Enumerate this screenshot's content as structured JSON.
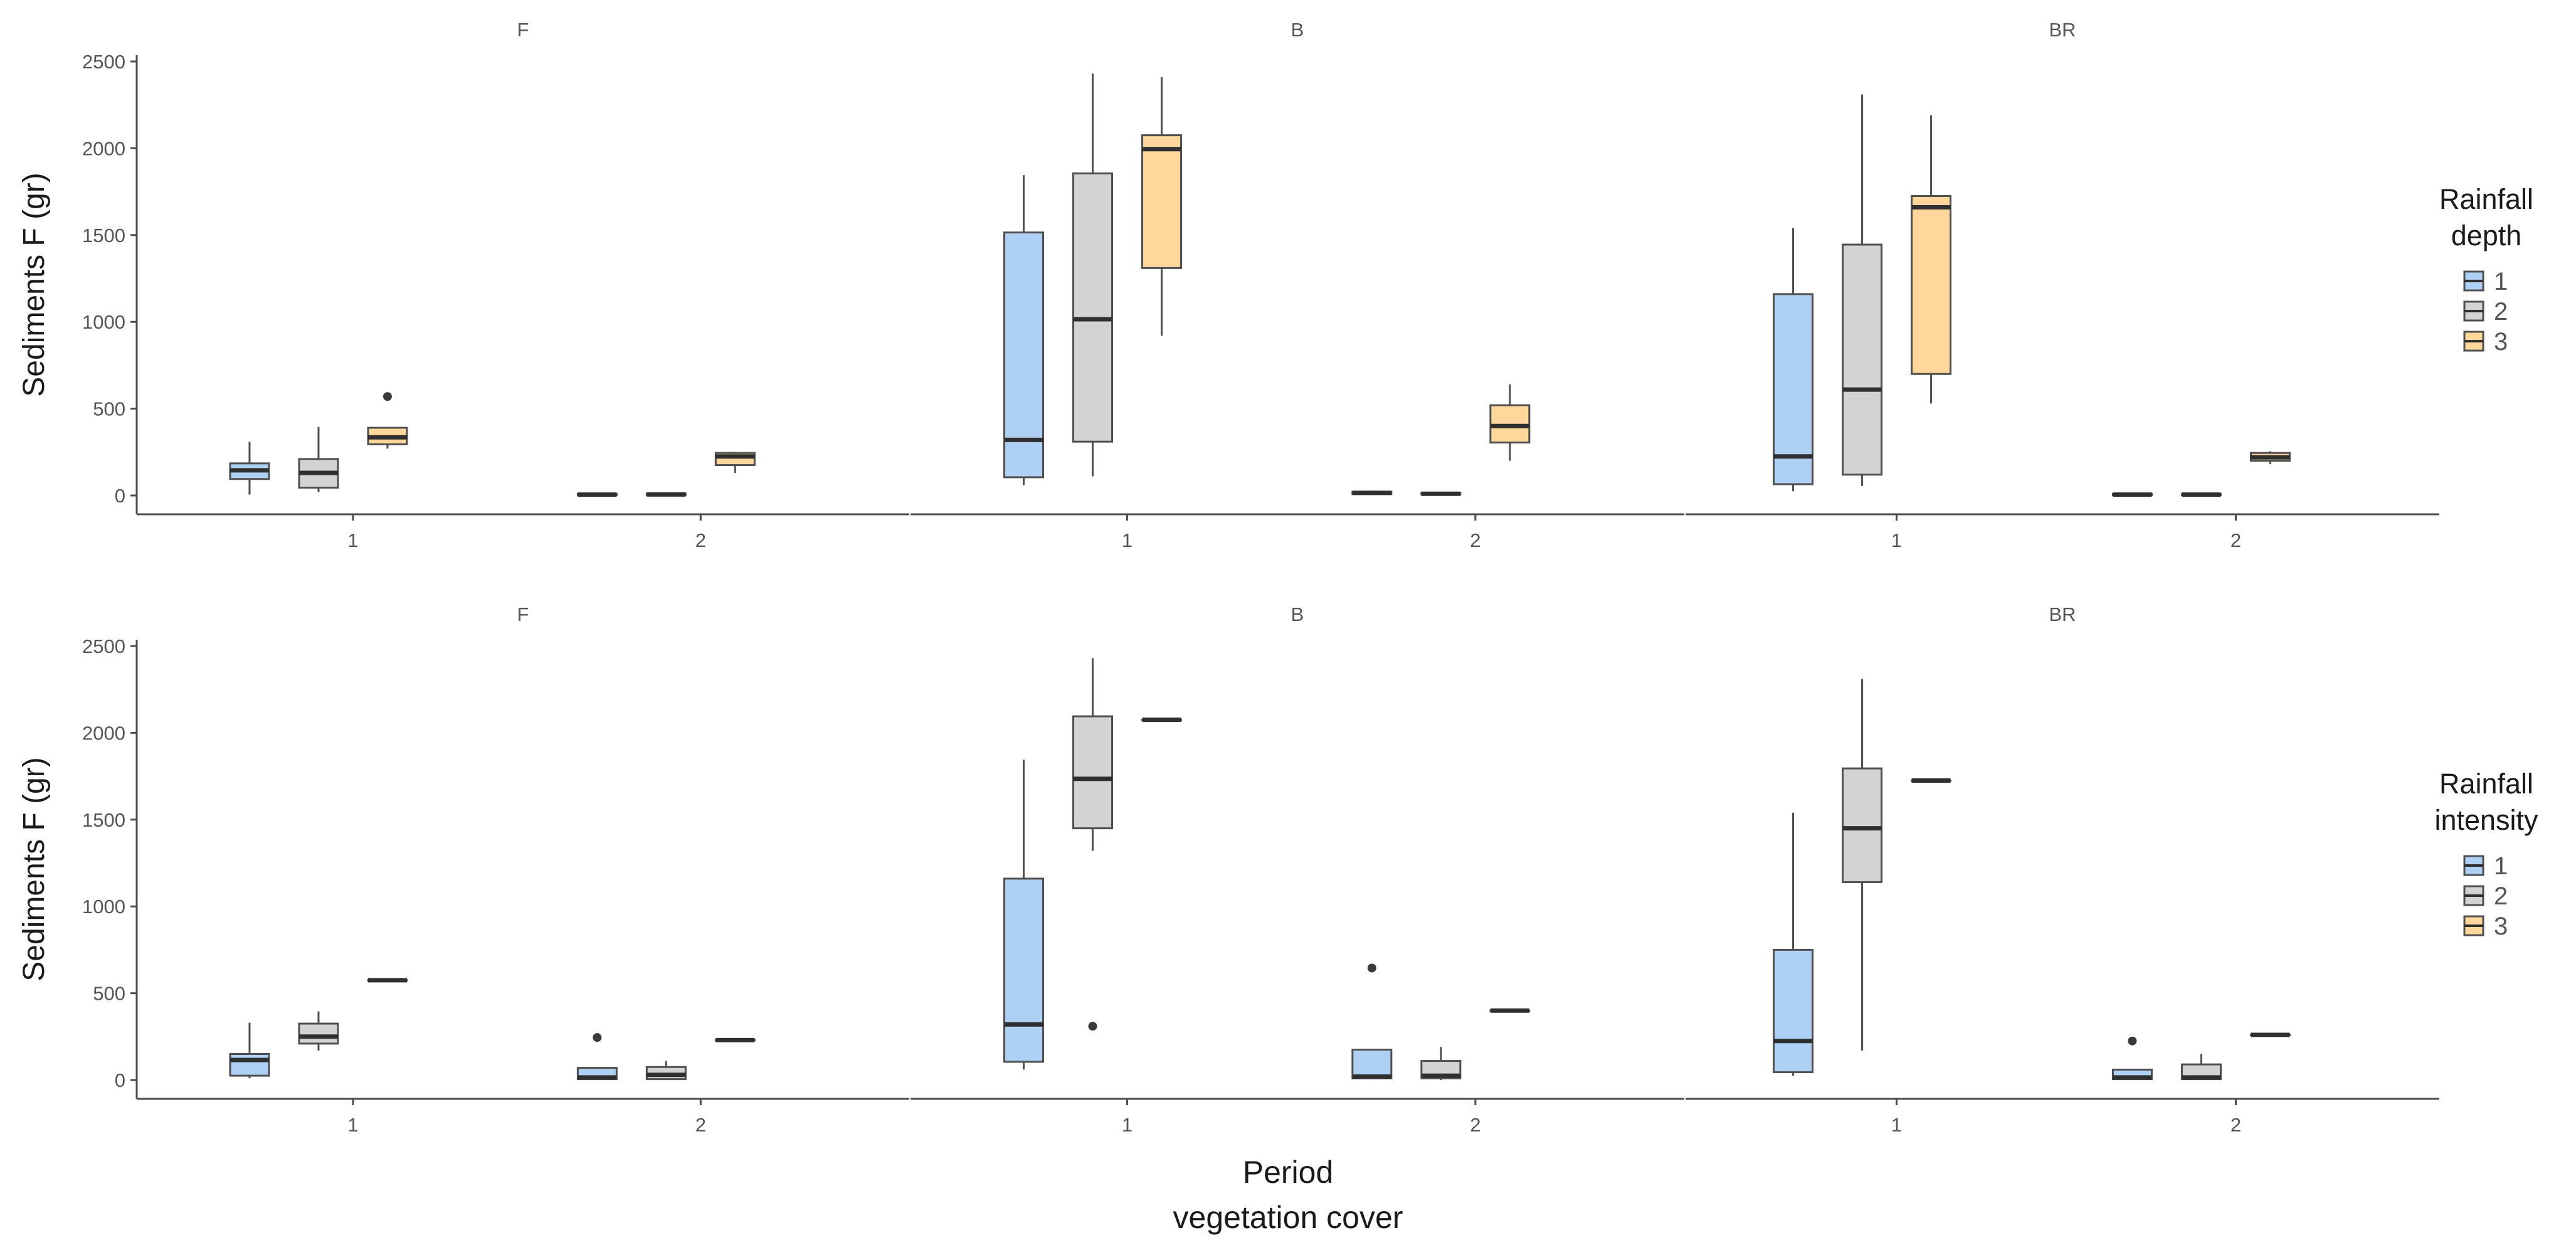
{
  "chart_data": [
    {
      "type": "box",
      "ylabel": "Sediments F (gr)",
      "legend": {
        "title_lines": [
          "Rainfall",
          "depth"
        ],
        "labels": [
          "1",
          "2",
          "3"
        ],
        "placement": "right"
      },
      "ylim": [
        0,
        2500
      ],
      "yticks": [
        0,
        500,
        1000,
        1500,
        2000,
        2500
      ],
      "xticks": [
        "1",
        "2"
      ],
      "panels": [
        {
          "title": "F",
          "boxes": [
            {
              "period": "1",
              "group": 1,
              "min": 5,
              "q1": 95,
              "median": 145,
              "q3": 185,
              "max": 310,
              "outliers": []
            },
            {
              "period": "1",
              "group": 2,
              "min": 20,
              "q1": 45,
              "median": 130,
              "q3": 210,
              "max": 395,
              "outliers": []
            },
            {
              "period": "1",
              "group": 3,
              "min": 270,
              "q1": 295,
              "median": 335,
              "q3": 390,
              "max": 390,
              "outliers": [
                570
              ]
            },
            {
              "period": "2",
              "group": 1,
              "min": 0,
              "q1": 2,
              "median": 5,
              "q3": 9,
              "max": 12,
              "outliers": []
            },
            {
              "period": "2",
              "group": 2,
              "min": 0,
              "q1": 3,
              "median": 6,
              "q3": 10,
              "max": 14,
              "outliers": []
            },
            {
              "period": "2",
              "group": 3,
              "min": 130,
              "q1": 175,
              "median": 225,
              "q3": 245,
              "max": 250,
              "outliers": []
            }
          ]
        },
        {
          "title": "B",
          "boxes": [
            {
              "period": "1",
              "group": 1,
              "min": 60,
              "q1": 105,
              "median": 320,
              "q3": 1515,
              "max": 1845,
              "outliers": []
            },
            {
              "period": "1",
              "group": 2,
              "min": 110,
              "q1": 310,
              "median": 1015,
              "q3": 1855,
              "max": 2430,
              "outliers": []
            },
            {
              "period": "1",
              "group": 3,
              "min": 920,
              "q1": 1310,
              "median": 1995,
              "q3": 2075,
              "max": 2410,
              "outliers": []
            },
            {
              "period": "2",
              "group": 1,
              "min": 5,
              "q1": 8,
              "median": 15,
              "q3": 22,
              "max": 28,
              "outliers": []
            },
            {
              "period": "2",
              "group": 2,
              "min": 3,
              "q1": 6,
              "median": 10,
              "q3": 15,
              "max": 20,
              "outliers": []
            },
            {
              "period": "2",
              "group": 3,
              "min": 200,
              "q1": 305,
              "median": 400,
              "q3": 520,
              "max": 640,
              "outliers": []
            }
          ]
        },
        {
          "title": "BR",
          "boxes": [
            {
              "period": "1",
              "group": 1,
              "min": 25,
              "q1": 65,
              "median": 225,
              "q3": 1160,
              "max": 1540,
              "outliers": []
            },
            {
              "period": "1",
              "group": 2,
              "min": 55,
              "q1": 120,
              "median": 610,
              "q3": 1445,
              "max": 2310,
              "outliers": []
            },
            {
              "period": "1",
              "group": 3,
              "min": 530,
              "q1": 700,
              "median": 1660,
              "q3": 1725,
              "max": 2190,
              "outliers": []
            },
            {
              "period": "2",
              "group": 1,
              "min": 0,
              "q1": 2,
              "median": 5,
              "q3": 9,
              "max": 12,
              "outliers": []
            },
            {
              "period": "2",
              "group": 2,
              "min": 0,
              "q1": 2,
              "median": 5,
              "q3": 8,
              "max": 10,
              "outliers": []
            },
            {
              "period": "2",
              "group": 3,
              "min": 180,
              "q1": 200,
              "median": 220,
              "q3": 245,
              "max": 255,
              "outliers": []
            }
          ]
        }
      ]
    },
    {
      "type": "box",
      "ylabel": "Sediments F (gr)",
      "legend": {
        "title_lines": [
          "Rainfall",
          "intensity"
        ],
        "labels": [
          "1",
          "2",
          "3"
        ],
        "placement": "right"
      },
      "ylim": [
        0,
        2500
      ],
      "yticks": [
        0,
        500,
        1000,
        1500,
        2000,
        2500
      ],
      "xticks": [
        "1",
        "2"
      ],
      "panels": [
        {
          "title": "F",
          "boxes": [
            {
              "period": "1",
              "group": 1,
              "min": 10,
              "q1": 25,
              "median": 115,
              "q3": 150,
              "max": 330,
              "outliers": []
            },
            {
              "period": "1",
              "group": 2,
              "min": 170,
              "q1": 210,
              "median": 250,
              "q3": 325,
              "max": 395,
              "outliers": []
            },
            {
              "period": "1",
              "group": 3,
              "min": 575,
              "q1": 575,
              "median": 575,
              "q3": 575,
              "max": 575,
              "outliers": []
            },
            {
              "period": "2",
              "group": 1,
              "min": 0,
              "q1": 5,
              "median": 15,
              "q3": 70,
              "max": 70,
              "outliers": [
                245
              ]
            },
            {
              "period": "2",
              "group": 2,
              "min": 0,
              "q1": 5,
              "median": 30,
              "q3": 75,
              "max": 110,
              "outliers": []
            },
            {
              "period": "2",
              "group": 3,
              "min": 230,
              "q1": 230,
              "median": 230,
              "q3": 230,
              "max": 230,
              "outliers": []
            }
          ]
        },
        {
          "title": "B",
          "boxes": [
            {
              "period": "1",
              "group": 1,
              "min": 60,
              "q1": 105,
              "median": 320,
              "q3": 1160,
              "max": 1845,
              "outliers": []
            },
            {
              "period": "1",
              "group": 2,
              "min": 1320,
              "q1": 1450,
              "median": 1735,
              "q3": 2095,
              "max": 2430,
              "outliers": [
                310
              ]
            },
            {
              "period": "1",
              "group": 3,
              "min": 2075,
              "q1": 2075,
              "median": 2075,
              "q3": 2075,
              "max": 2075,
              "outliers": []
            },
            {
              "period": "2",
              "group": 1,
              "min": 5,
              "q1": 10,
              "median": 20,
              "q3": 175,
              "max": 175,
              "outliers": [
                645
              ]
            },
            {
              "period": "2",
              "group": 2,
              "min": 0,
              "q1": 10,
              "median": 25,
              "q3": 110,
              "max": 190,
              "outliers": []
            },
            {
              "period": "2",
              "group": 3,
              "min": 400,
              "q1": 400,
              "median": 400,
              "q3": 400,
              "max": 400,
              "outliers": []
            }
          ]
        },
        {
          "title": "BR",
          "boxes": [
            {
              "period": "1",
              "group": 1,
              "min": 25,
              "q1": 45,
              "median": 225,
              "q3": 750,
              "max": 1540,
              "outliers": []
            },
            {
              "period": "1",
              "group": 2,
              "min": 170,
              "q1": 1140,
              "median": 1450,
              "q3": 1795,
              "max": 2310,
              "outliers": []
            },
            {
              "period": "1",
              "group": 3,
              "min": 1725,
              "q1": 1725,
              "median": 1725,
              "q3": 1725,
              "max": 1725,
              "outliers": []
            },
            {
              "period": "2",
              "group": 1,
              "min": 0,
              "q1": 5,
              "median": 15,
              "q3": 60,
              "max": 60,
              "outliers": [
                225
              ]
            },
            {
              "period": "2",
              "group": 2,
              "min": 0,
              "q1": 5,
              "median": 15,
              "q3": 90,
              "max": 150,
              "outliers": []
            },
            {
              "period": "2",
              "group": 3,
              "min": 260,
              "q1": 260,
              "median": 260,
              "q3": 260,
              "max": 260,
              "outliers": []
            }
          ]
        }
      ]
    }
  ],
  "xlabel_lines": [
    "Period",
    "vegetation cover"
  ],
  "colors": {
    "group1": "#aed0f4",
    "group2": "#d3d3d3",
    "group3": "#fdd79b",
    "stroke": "#4f4f4f",
    "axis": "#4d4d4d",
    "text": "#555555",
    "title_text": "#1a1a1a"
  }
}
